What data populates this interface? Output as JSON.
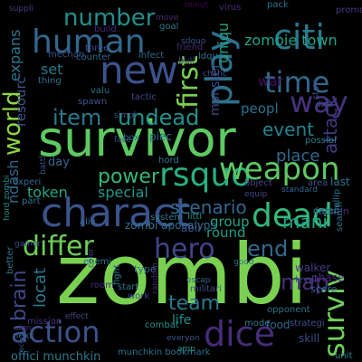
{
  "wordcloud": {
    "background": "#000000",
    "words": [
      {
        "text": "zombi",
        "color": "#7ad151"
      },
      {
        "text": "survivor",
        "color": "#5ec962"
      },
      {
        "text": "charact",
        "color": "#3b528b"
      },
      {
        "text": "new",
        "color": "#3b528b"
      },
      {
        "text": "human",
        "color": "#31688e"
      },
      {
        "text": "dead",
        "color": "#35b779"
      },
      {
        "text": "play",
        "color": "#2c728e"
      },
      {
        "text": "rsquo",
        "color": "#29af7f"
      },
      {
        "text": "weapon",
        "color": "#5ec962"
      },
      {
        "text": "dice",
        "color": "#472c7a"
      },
      {
        "text": "action",
        "color": "#3b528b"
      },
      {
        "text": "hero",
        "color": "#414487"
      },
      {
        "text": "time",
        "color": "#31688e"
      },
      {
        "text": "differ",
        "color": "#6ece58"
      },
      {
        "text": "citi",
        "color": "#2a788e"
      },
      {
        "text": "way",
        "color": "#46337f"
      },
      {
        "text": "first",
        "color": "#7ad151"
      },
      {
        "text": "surviv",
        "color": "#6ece58"
      },
      {
        "text": "number",
        "color": "#21908d"
      },
      {
        "text": "world",
        "color": "#90d743"
      },
      {
        "text": "item",
        "color": "#2a788e"
      },
      {
        "text": "undead",
        "color": "#21918c"
      },
      {
        "text": "power",
        "color": "#35b779"
      },
      {
        "text": "scenario",
        "color": "#31688e"
      },
      {
        "text": "brain",
        "color": "#3e4989"
      },
      {
        "text": "locat",
        "color": "#2a788e"
      },
      {
        "text": "end",
        "color": "#31688e"
      },
      {
        "text": "map",
        "color": "#472c7a"
      },
      {
        "text": "team",
        "color": "#2a788e"
      },
      {
        "text": "mani",
        "color": "#20a486"
      },
      {
        "text": "attack",
        "color": "#443983"
      },
      {
        "text": "event",
        "color": "#25838e"
      },
      {
        "text": "place",
        "color": "#31688e"
      },
      {
        "text": "zombie town",
        "color": "#1fa187"
      },
      {
        "text": "monster",
        "color": "#3e4989"
      },
      {
        "text": "uniqu",
        "color": "#20a486"
      },
      {
        "text": "expans",
        "color": "#2a788e"
      },
      {
        "text": "set",
        "color": "#2a788e"
      },
      {
        "text": "ndash",
        "color": "#31688e"
      },
      {
        "text": "special",
        "color": "#1f968b"
      },
      {
        "text": "group",
        "color": "#20a486"
      },
      {
        "text": "round",
        "color": "#1f9e89"
      },
      {
        "text": "token",
        "color": "#22a785"
      },
      {
        "text": "resourc",
        "color": "#3b528b"
      },
      {
        "text": "peopl",
        "color": "#2c728e"
      },
      {
        "text": "war",
        "color": "#471164"
      },
      {
        "text": "life",
        "color": "#21918c"
      },
      {
        "text": "offici munchkin",
        "color": "#2a788e"
      },
      {
        "text": "zombi apocalyps",
        "color": "#2c728e"
      },
      {
        "text": "day",
        "color": "#31688e"
      },
      {
        "text": "suppli",
        "color": "#443983"
      },
      {
        "text": "move",
        "color": "#482878"
      },
      {
        "text": "minut",
        "color": "#440154"
      },
      {
        "text": "virus",
        "color": "#472c7a"
      },
      {
        "text": "pack",
        "color": "#2c728e"
      },
      {
        "text": "promo",
        "color": "#46337f"
      },
      {
        "text": "stori",
        "color": "#3e4989"
      },
      {
        "text": "search",
        "color": "#2a788e"
      },
      {
        "text": "food",
        "color": "#31688e"
      },
      {
        "text": "mode",
        "color": "#2a788e"
      },
      {
        "text": "strategi",
        "color": "#3b528b"
      },
      {
        "text": "combat",
        "color": "#21918c"
      },
      {
        "text": "start",
        "color": "#2a788e"
      },
      {
        "text": "mission",
        "color": "#46337f"
      },
      {
        "text": "room",
        "color": "#482878"
      },
      {
        "text": "next",
        "color": "#31688e"
      },
      {
        "text": "race",
        "color": "#3b528b"
      },
      {
        "text": "munchkin bookmark",
        "color": "#2c728e"
      },
      {
        "text": "everyon",
        "color": "#3b528b"
      },
      {
        "text": "amp",
        "color": "#21918c"
      },
      {
        "text": "unit",
        "color": "#25838e"
      },
      {
        "text": "skill",
        "color": "#3e4989"
      },
      {
        "text": "phase",
        "color": "#472c7a"
      },
      {
        "text": "score",
        "color": "#31688e"
      },
      {
        "text": "opponent",
        "color": "#2c728e"
      },
      {
        "text": "level",
        "color": "#3e4989"
      },
      {
        "text": "walker",
        "color": "#443983"
      },
      {
        "text": "faction",
        "color": "#472c7a"
      },
      {
        "text": "last",
        "color": "#2c728e"
      },
      {
        "text": "hellip",
        "color": "#2a788e"
      },
      {
        "text": "standard",
        "color": "#31688e"
      },
      {
        "text": "possibl",
        "color": "#2a788e"
      },
      {
        "text": "area",
        "color": "#3b528b"
      },
      {
        "text": "equip",
        "color": "#3e4989"
      },
      {
        "text": "object",
        "color": "#414487"
      },
      {
        "text": "littl",
        "color": "#21918c"
      },
      {
        "text": "abil",
        "color": "#3b528b"
      },
      {
        "text": "good",
        "color": "#2c728e"
      },
      {
        "text": "escap",
        "color": "#31688e"
      },
      {
        "text": "militari",
        "color": "#3b528b"
      },
      {
        "text": "random",
        "color": "#482878"
      },
      {
        "text": "fight",
        "color": "#2a788e"
      },
      {
        "text": "work",
        "color": "#3e4989"
      },
      {
        "text": "type",
        "color": "#31688e"
      },
      {
        "text": "enemi",
        "color": "#2a788e"
      },
      {
        "text": "better",
        "color": "#2c728e"
      },
      {
        "text": "experi",
        "color": "#31688e"
      },
      {
        "text": "part",
        "color": "#2c728e"
      },
      {
        "text": "battl",
        "color": "#3b528b"
      },
      {
        "text": "gamer",
        "color": "#3e4989"
      },
      {
        "text": "hord zombi",
        "color": "#21918c"
      },
      {
        "text": "effect",
        "color": "#414487"
      },
      {
        "text": "sign",
        "color": "#46337f"
      },
      {
        "text": "system",
        "color": "#2a788e"
      },
      {
        "text": "aliv",
        "color": "#31688e"
      },
      {
        "text": "tactic",
        "color": "#3e4989"
      },
      {
        "text": "box",
        "color": "#2a788e"
      },
      {
        "text": "piec",
        "color": "#2c728e"
      },
      {
        "text": "hord",
        "color": "#2a788e"
      },
      {
        "text": "spawn",
        "color": "#3b528b"
      },
      {
        "text": "valu",
        "color": "#2c728e"
      },
      {
        "text": "bull",
        "color": "#46337f"
      },
      {
        "text": "chanc",
        "color": "#3b528b"
      },
      {
        "text": "friend",
        "color": "#482878"
      },
      {
        "text": "infect",
        "color": "#31688e"
      },
      {
        "text": "goal",
        "color": "#2a788e"
      },
      {
        "text": "build",
        "color": "#482878"
      },
      {
        "text": "mechan",
        "color": "#3b528b"
      },
      {
        "text": "thing",
        "color": "#2c728e"
      },
      {
        "text": "counter",
        "color": "#31688e"
      },
      {
        "text": "three",
        "color": "#3e4989"
      },
      {
        "text": "sdquo",
        "color": "#3b528b"
      },
      {
        "text": "ldquo",
        "color": "#2c728e"
      },
      {
        "text": "simpl",
        "color": "#3b528b"
      },
      {
        "text": "face",
        "color": "#3b528b"
      },
      {
        "text": "order",
        "color": "#21918c"
      },
      {
        "text": "dice",
        "color": "#3b528b"
      },
      {
        "text": "color",
        "color": "#3e4989"
      }
    ]
  }
}
